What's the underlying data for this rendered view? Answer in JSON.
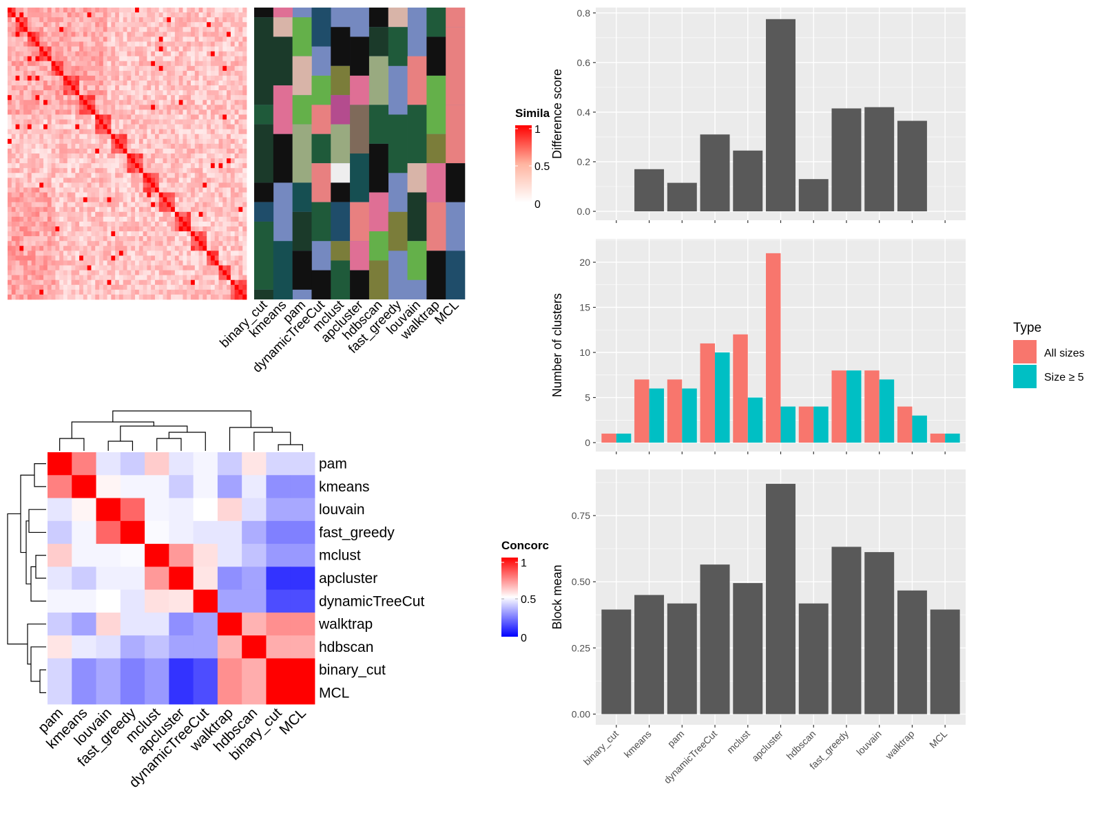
{
  "methods": [
    "binary_cut",
    "kmeans",
    "pam",
    "dynamicTreeCut",
    "mclust",
    "apcluster",
    "hdbscan",
    "fast_greedy",
    "louvain",
    "walktrap",
    "MCL"
  ],
  "colors": {
    "bar_gray": "#595959",
    "panel_bg": "#ebebeb",
    "gridline": "#ffffff",
    "all_sizes": "#f8766d",
    "size_ge5": "#00bfc4",
    "sim_high": "#ff0000",
    "sim_low": "#ffffff",
    "conc_high": "#ff0000",
    "conc_mid": "#ffffff",
    "conc_low": "#0000ff",
    "cluster_bg": "#7589c0"
  },
  "similarity_legend": {
    "title": "Simila",
    "ticks": [
      "1",
      "0.5",
      "0"
    ]
  },
  "concordance_legend": {
    "title": "Concorc",
    "ticks": [
      "1",
      "0.5",
      "0"
    ]
  },
  "type_legend": {
    "title": "Type",
    "items": [
      "All sizes",
      "Size ≥ 5"
    ]
  },
  "concordance": {
    "row_order": [
      "pam",
      "kmeans",
      "louvain",
      "fast_greedy",
      "mclust",
      "apcluster",
      "dynamicTreeCut",
      "walktrap",
      "hdbscan",
      "binary_cut",
      "MCL"
    ],
    "col_order": [
      "pam",
      "kmeans",
      "louvain",
      "fast_greedy",
      "mclust",
      "apcluster",
      "dynamicTreeCut",
      "walktrap",
      "hdbscan",
      "binary_cut",
      "MCL"
    ],
    "matrix": [
      [
        1.0,
        0.75,
        0.45,
        0.4,
        0.6,
        0.45,
        0.48,
        0.4,
        0.55,
        0.42,
        0.42
      ],
      [
        0.75,
        1.0,
        0.52,
        0.48,
        0.48,
        0.4,
        0.48,
        0.32,
        0.46,
        0.28,
        0.28
      ],
      [
        0.45,
        0.52,
        1.0,
        0.8,
        0.48,
        0.47,
        0.5,
        0.58,
        0.44,
        0.33,
        0.33
      ],
      [
        0.4,
        0.48,
        0.8,
        1.0,
        0.49,
        0.47,
        0.45,
        0.45,
        0.34,
        0.25,
        0.25
      ],
      [
        0.6,
        0.48,
        0.48,
        0.49,
        1.0,
        0.7,
        0.56,
        0.45,
        0.38,
        0.3,
        0.3
      ],
      [
        0.45,
        0.4,
        0.47,
        0.47,
        0.7,
        1.0,
        0.55,
        0.28,
        0.32,
        0.1,
        0.1
      ],
      [
        0.48,
        0.48,
        0.5,
        0.45,
        0.56,
        0.55,
        1.0,
        0.32,
        0.32,
        0.15,
        0.15
      ],
      [
        0.4,
        0.32,
        0.58,
        0.45,
        0.45,
        0.28,
        0.32,
        1.0,
        0.65,
        0.72,
        0.72
      ],
      [
        0.55,
        0.46,
        0.44,
        0.34,
        0.38,
        0.32,
        0.32,
        0.65,
        1.0,
        0.66,
        0.66
      ],
      [
        0.42,
        0.28,
        0.33,
        0.25,
        0.3,
        0.1,
        0.15,
        0.72,
        0.66,
        1.0,
        1.0
      ],
      [
        0.42,
        0.28,
        0.33,
        0.25,
        0.3,
        0.1,
        0.15,
        0.72,
        0.66,
        1.0,
        1.0
      ]
    ]
  },
  "chart_data": [
    {
      "type": "bar",
      "categories": [
        "binary_cut",
        "kmeans",
        "pam",
        "dynamicTreeCut",
        "mclust",
        "apcluster",
        "hdbscan",
        "fast_greedy",
        "louvain",
        "walktrap",
        "MCL"
      ],
      "values": [
        0,
        0.17,
        0.115,
        0.31,
        0.245,
        0.775,
        0.13,
        0.415,
        0.42,
        0.365,
        0
      ],
      "xlabel": "",
      "ylabel": "Difference score",
      "ylim": [
        0,
        0.8
      ],
      "yticks": [
        "0.0",
        "0.2",
        "0.4",
        "0.6",
        "0.8"
      ],
      "grid": true
    },
    {
      "type": "bar",
      "categories": [
        "binary_cut",
        "kmeans",
        "pam",
        "dynamicTreeCut",
        "mclust",
        "apcluster",
        "hdbscan",
        "fast_greedy",
        "louvain",
        "walktrap",
        "MCL"
      ],
      "series": [
        {
          "name": "All sizes",
          "values": [
            1,
            7,
            7,
            11,
            12,
            21,
            4,
            8,
            8,
            4,
            1
          ]
        },
        {
          "name": "Size ≥ 5",
          "values": [
            1,
            6,
            6,
            10,
            5,
            4,
            4,
            8,
            7,
            3,
            1
          ]
        }
      ],
      "xlabel": "",
      "ylabel": "Number of clusters",
      "ylim": [
        0,
        22
      ],
      "yticks": [
        "0",
        "5",
        "10",
        "15",
        "20"
      ],
      "legend": "right",
      "grid": true
    },
    {
      "type": "bar",
      "categories": [
        "binary_cut",
        "kmeans",
        "pam",
        "dynamicTreeCut",
        "mclust",
        "apcluster",
        "hdbscan",
        "fast_greedy",
        "louvain",
        "walktrap",
        "MCL"
      ],
      "values": [
        0.395,
        0.45,
        0.418,
        0.565,
        0.495,
        0.87,
        0.418,
        0.632,
        0.612,
        0.467,
        0.395
      ],
      "xlabel": "",
      "ylabel": "Block mean",
      "ylim": [
        0,
        0.9
      ],
      "yticks": [
        "0.00",
        "0.25",
        "0.50",
        "0.75"
      ],
      "grid": true
    }
  ]
}
